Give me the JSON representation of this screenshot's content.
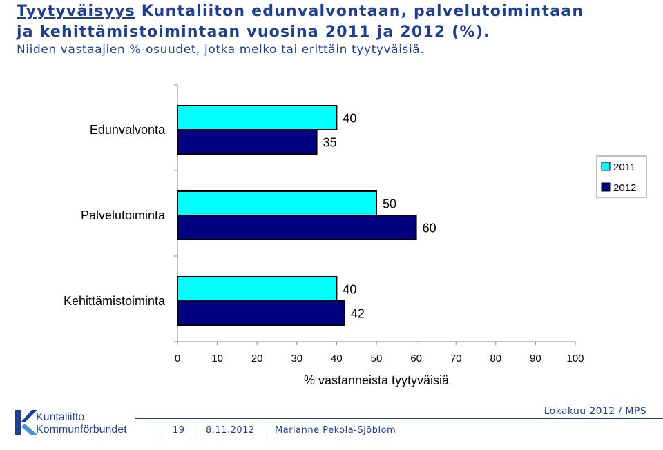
{
  "header": {
    "title_underlined": "Tyytyväisyys",
    "title_rest": " Kuntaliiton edunvalvontaan, palvelutoimintaan",
    "title_line2": "ja kehittämistoimintaan vuosina 2011 ja 2012 (%).",
    "subtitle": "Niiden vastaajien %-osuudet, jotka melko tai erittäin tyytyväisiä."
  },
  "chart_data": {
    "type": "bar",
    "orientation": "horizontal",
    "categories": [
      "Edunvalvonta",
      "Palvelutoiminta",
      "Kehittämistoiminta"
    ],
    "series": [
      {
        "name": "2011",
        "values": [
          40,
          50,
          40
        ],
        "color": "#00ffff"
      },
      {
        "name": "2012",
        "values": [
          35,
          60,
          42
        ],
        "color": "#000080"
      }
    ],
    "xlabel": "% vastanneista tyytyväisiä",
    "xlim": [
      0,
      100
    ],
    "xticks": [
      0,
      10,
      20,
      30,
      40,
      50,
      60,
      70,
      80,
      90,
      100
    ],
    "legend_position": "right",
    "grid": false
  },
  "footer": {
    "logo_line1": "Kuntaliitto",
    "logo_line2": "Kommunförbundet",
    "date_right": "Lokakuu 2012 / MPS",
    "page_number": "19",
    "date": "8.11.2012",
    "author": "Marianne Pekola-Sjöblom"
  },
  "colors": {
    "brand": "#1d3f93"
  }
}
